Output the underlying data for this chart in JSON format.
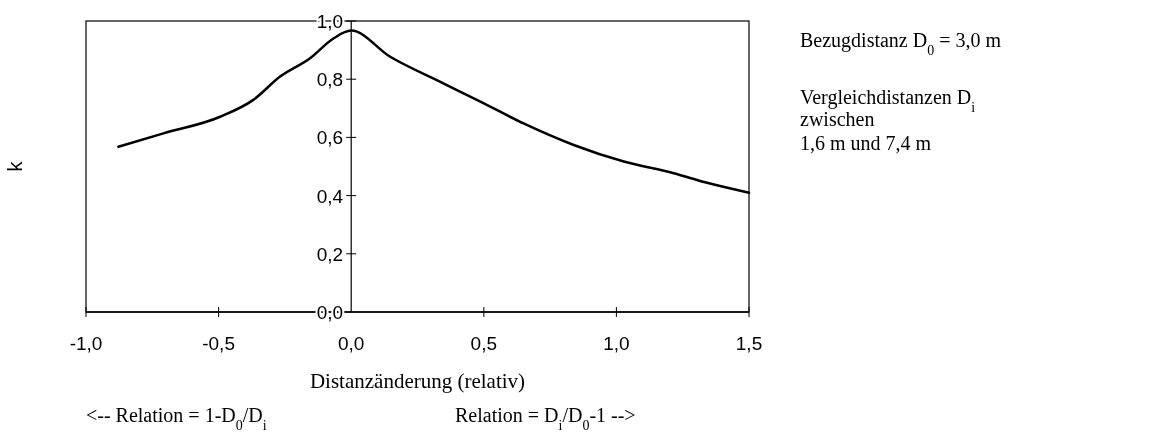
{
  "chart_data": {
    "type": "line",
    "xlabel": "Distanzänderung (relativ)",
    "ylabel": "k",
    "x": [
      -0.878,
      -0.708,
      -0.494,
      -0.369,
      -0.268,
      -0.155,
      -0.067,
      0,
      0.147,
      0.336,
      0.487,
      0.65,
      0.839,
      1.028,
      1.216,
      1.342,
      1.5
    ],
    "series": [
      {
        "color": "#000000",
        "values": [
          0.568,
          0.614,
          0.671,
          0.729,
          0.809,
          0.872,
          0.94,
          0.967,
          0.877,
          0.791,
          0.723,
          0.648,
          0.574,
          0.517,
          0.477,
          0.444,
          0.41
        ]
      }
    ],
    "xlim": [
      -1,
      1.5
    ],
    "xticks": [
      {
        "value": -1,
        "label": "-1,0"
      },
      {
        "value": -0.5,
        "label": "-0,5"
      },
      {
        "value": 0,
        "label": "0,0"
      },
      {
        "value": 0.5,
        "label": "0,5"
      },
      {
        "value": 1,
        "label": "1,0"
      },
      {
        "value": 1.5,
        "label": "1,5"
      }
    ],
    "ylim": [
      0,
      1
    ],
    "yticks": [
      {
        "value": 0,
        "label": "0,0"
      },
      {
        "value": 0.2,
        "label": "0,2"
      },
      {
        "value": 0.4,
        "label": "0,4"
      },
      {
        "value": 0.6,
        "label": "0,6"
      },
      {
        "value": 0.8,
        "label": "0,8"
      },
      {
        "value": 1,
        "label": "1,0"
      }
    ],
    "grid": false,
    "marker": "none",
    "line_style": "solid",
    "annotations": [
      "Bezugdistanz D$_{0}$ = 3,0 m",
      "Vergleichdistanzen D$_{i}$",
      "zwischen",
      "1,6 m und 7,4 m",
      "<-- Relation = 1-D$_{0}$/D$_{i}$",
      "Relation = D$_{i}$/D$_{0}$-1 -->"
    ]
  }
}
